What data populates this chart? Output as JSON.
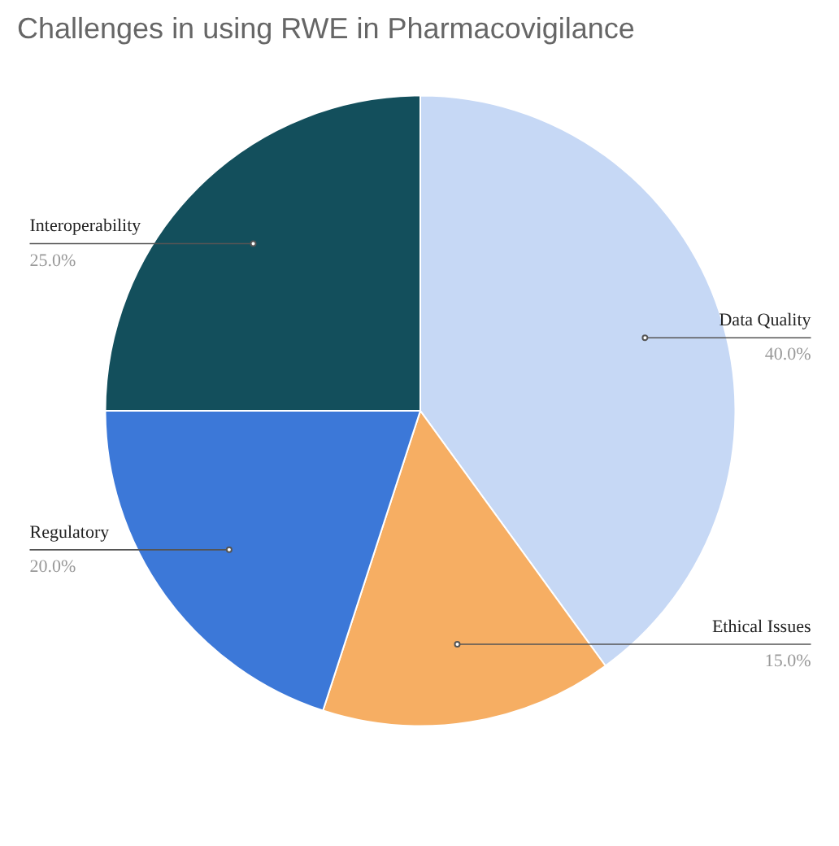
{
  "chart_data": {
    "type": "pie",
    "title": "Challenges in using RWE in Pharmacovigilance",
    "categories": [
      "Data Quality",
      "Ethical Issues",
      "Regulatory",
      "Interoperability"
    ],
    "values": [
      40,
      15,
      20,
      25
    ],
    "value_labels": [
      "40.0%",
      "15.0%",
      "20.0%",
      "25.0%"
    ],
    "colors": [
      "#c6d8f5",
      "#f6ae63",
      "#3c78d8",
      "#134f5c"
    ]
  }
}
